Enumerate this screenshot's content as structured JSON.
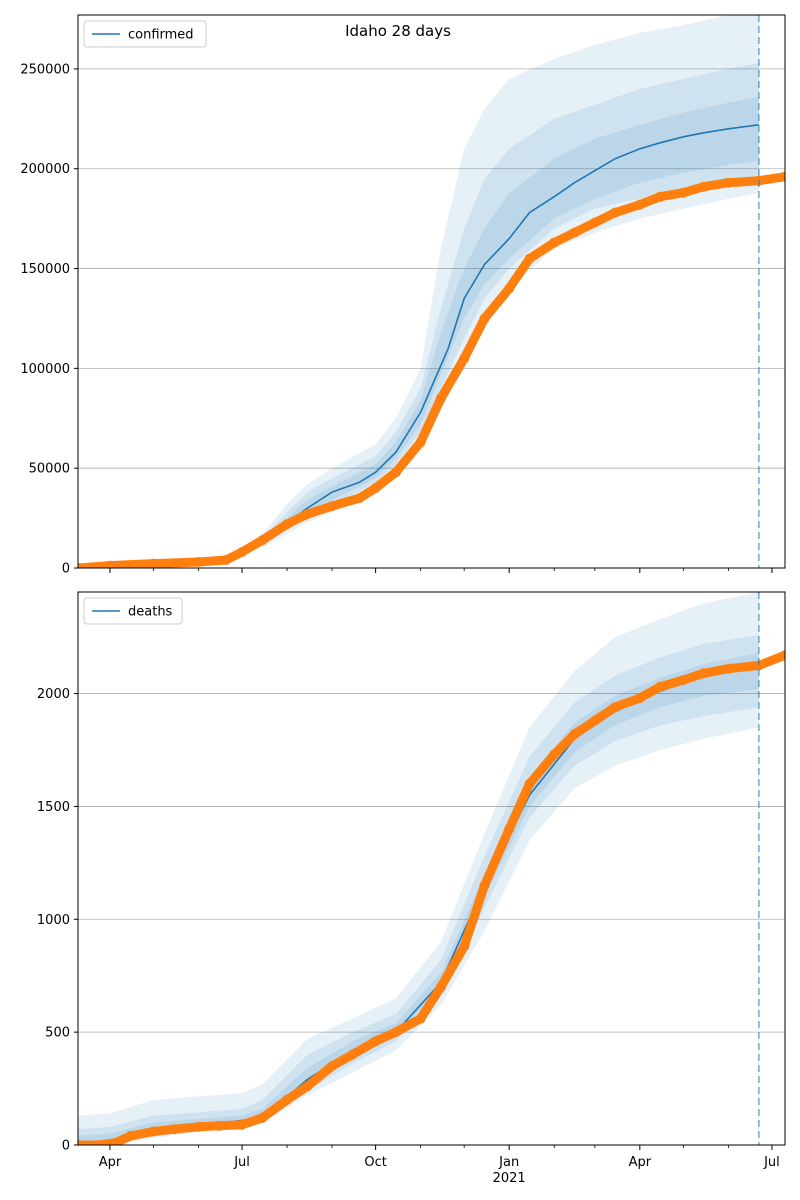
{
  "title": "Idaho 28 days",
  "chart_data": [
    {
      "type": "line",
      "title": "Idaho 28 days",
      "legend": "top-left",
      "grid": "y",
      "legend_label": "confirmed",
      "ylim": [
        0,
        277000
      ],
      "xlim": [
        "2020-03-10",
        "2021-07-10"
      ],
      "yticks": [
        0,
        50000,
        100000,
        150000,
        200000,
        250000
      ],
      "ytick_labels": [
        "0",
        "50000",
        "100000",
        "150000",
        "200000",
        "250000"
      ],
      "forecast_date": "2021-06-22",
      "colors": {
        "forecast": "#1f77b4",
        "observed": "#ff7f0e",
        "band": "#1f77b4"
      },
      "series": [
        {
          "name": "confirmed",
          "role": "forecast",
          "points": [
            [
              "2020-07-25",
              18500
            ],
            [
              "2020-08-15",
              30000
            ],
            [
              "2020-09-01",
              38000
            ],
            [
              "2020-09-20",
              43000
            ],
            [
              "2020-10-01",
              48000
            ],
            [
              "2020-10-15",
              58000
            ],
            [
              "2020-11-01",
              78000
            ],
            [
              "2020-11-20",
              110000
            ],
            [
              "2020-12-01",
              135000
            ],
            [
              "2020-12-15",
              152000
            ],
            [
              "2021-01-01",
              165000
            ],
            [
              "2021-01-15",
              178000
            ],
            [
              "2021-02-01",
              186000
            ],
            [
              "2021-02-15",
              193000
            ],
            [
              "2021-03-01",
              199000
            ],
            [
              "2021-03-15",
              205000
            ],
            [
              "2021-04-01",
              210000
            ],
            [
              "2021-04-15",
              213000
            ],
            [
              "2021-05-01",
              216000
            ],
            [
              "2021-05-15",
              218000
            ],
            [
              "2021-06-01",
              220000
            ],
            [
              "2021-06-22",
              222000
            ]
          ],
          "bands": [
            {
              "dates": [
                "2020-07-15",
                "2020-08-01",
                "2020-08-15",
                "2020-09-01",
                "2020-10-01",
                "2020-10-15",
                "2020-11-01",
                "2020-11-15",
                "2020-12-01",
                "2020-12-15",
                "2021-01-01",
                "2021-02-01",
                "2021-03-01",
                "2021-04-01",
                "2021-05-01",
                "2021-06-01",
                "2021-06-22"
              ],
              "lower": [
                10000,
                17000,
                23000,
                28000,
                40000,
                48000,
                62000,
                80000,
                100000,
                125000,
                140000,
                160000,
                168000,
                175000,
                180000,
                185000,
                188000
              ],
              "upper": [
                17000,
                32000,
                42000,
                50000,
                62000,
                75000,
                100000,
                160000,
                210000,
                230000,
                245000,
                255000,
                262000,
                268000,
                272000,
                277000,
                277000
              ]
            },
            {
              "dates": [
                "2020-07-15",
                "2020-08-01",
                "2020-08-15",
                "2020-09-01",
                "2020-10-01",
                "2020-10-15",
                "2020-11-01",
                "2020-11-15",
                "2020-12-01",
                "2020-12-15",
                "2021-01-01",
                "2021-02-01",
                "2021-03-01",
                "2021-04-01",
                "2021-05-01",
                "2021-06-01",
                "2021-06-22"
              ],
              "lower": [
                11000,
                19000,
                26000,
                31000,
                43000,
                52000,
                68000,
                90000,
                115000,
                135000,
                150000,
                170000,
                180000,
                185000,
                190000,
                193000,
                195000
              ],
              "upper": [
                15000,
                28000,
                38000,
                45000,
                56000,
                68000,
                90000,
                130000,
                170000,
                195000,
                210000,
                225000,
                232000,
                240000,
                245000,
                250000,
                253000
              ]
            },
            {
              "dates": [
                "2020-07-15",
                "2020-08-01",
                "2020-08-15",
                "2020-09-01",
                "2020-10-01",
                "2020-10-15",
                "2020-11-01",
                "2020-11-15",
                "2020-12-01",
                "2020-12-15",
                "2021-01-01",
                "2021-02-01",
                "2021-03-01",
                "2021-04-01",
                "2021-05-01",
                "2021-06-01",
                "2021-06-22"
              ],
              "lower": [
                12000,
                21000,
                28000,
                34000,
                45000,
                55000,
                72000,
                97000,
                125000,
                142000,
                155000,
                175000,
                185000,
                193000,
                198000,
                202000,
                204000
              ],
              "upper": [
                14000,
                25000,
                34000,
                41000,
                52000,
                63000,
                84000,
                118000,
                150000,
                170000,
                188000,
                205000,
                215000,
                222000,
                228000,
                233000,
                236000
              ]
            }
          ]
        },
        {
          "name": "observed",
          "role": "observed",
          "points": [
            [
              "2020-03-10",
              0
            ],
            [
              "2020-04-01",
              1200
            ],
            [
              "2020-05-01",
              2200
            ],
            [
              "2020-06-01",
              3000
            ],
            [
              "2020-06-20",
              4000
            ],
            [
              "2020-07-01",
              8000
            ],
            [
              "2020-07-15",
              14000
            ],
            [
              "2020-08-01",
              22000
            ],
            [
              "2020-08-15",
              27000
            ],
            [
              "2020-09-01",
              31000
            ],
            [
              "2020-09-20",
              35000
            ],
            [
              "2020-10-01",
              40000
            ],
            [
              "2020-10-15",
              48000
            ],
            [
              "2020-11-01",
              63000
            ],
            [
              "2020-11-15",
              85000
            ],
            [
              "2020-12-01",
              105000
            ],
            [
              "2020-12-15",
              125000
            ],
            [
              "2021-01-01",
              140000
            ],
            [
              "2021-01-15",
              155000
            ],
            [
              "2021-02-01",
              163000
            ],
            [
              "2021-02-15",
              168000
            ],
            [
              "2021-03-01",
              173000
            ],
            [
              "2021-03-15",
              178000
            ],
            [
              "2021-04-01",
              182000
            ],
            [
              "2021-04-15",
              186000
            ],
            [
              "2021-05-01",
              188000
            ],
            [
              "2021-05-15",
              191000
            ],
            [
              "2021-06-01",
              193000
            ],
            [
              "2021-06-22",
              194000
            ],
            [
              "2021-07-10",
              196000
            ]
          ]
        }
      ]
    },
    {
      "type": "line",
      "legend": "top-left",
      "grid": "y",
      "legend_label": "deaths",
      "ylim": [
        0,
        2450
      ],
      "xlim": [
        "2020-03-10",
        "2021-07-10"
      ],
      "yticks": [
        0,
        500,
        1000,
        1500,
        2000
      ],
      "ytick_labels": [
        "0",
        "500",
        "1000",
        "1500",
        "2000"
      ],
      "xticks": [
        "2020-04-01",
        "2020-07-01",
        "2020-10-01",
        "2021-01-01",
        "2021-04-01",
        "2021-07-01"
      ],
      "xtick_labels": [
        "Apr",
        "Jul",
        "Oct",
        "Jan",
        "Apr",
        "Jul"
      ],
      "xtick_year_label": "2021",
      "minor_xticks": [
        "2020-05-01",
        "2020-06-01",
        "2020-08-01",
        "2020-09-01",
        "2020-11-01",
        "2020-12-01",
        "2021-02-01",
        "2021-03-01",
        "2021-05-01",
        "2021-06-01"
      ],
      "forecast_date": "2021-06-22",
      "colors": {
        "forecast": "#1f77b4",
        "observed": "#ff7f0e",
        "band": "#1f77b4"
      },
      "series": [
        {
          "name": "deaths",
          "role": "forecast",
          "points": [
            [
              "2020-04-15",
              30
            ],
            [
              "2020-06-01",
              85
            ],
            [
              "2020-07-15",
              120
            ],
            [
              "2020-08-15",
              290
            ],
            [
              "2020-09-15",
              420
            ],
            [
              "2020-10-15",
              500
            ],
            [
              "2020-11-15",
              720
            ],
            [
              "2020-12-15",
              1150
            ],
            [
              "2021-01-15",
              1550
            ],
            [
              "2021-02-15",
              1800
            ],
            [
              "2021-03-15",
              1920
            ],
            [
              "2021-04-15",
              2010
            ],
            [
              "2021-05-15",
              2080
            ],
            [
              "2021-06-22",
              2120
            ]
          ],
          "bands": [
            {
              "dates": [
                "2020-03-10",
                "2020-04-01",
                "2020-05-01",
                "2020-06-01",
                "2020-07-01",
                "2020-07-15",
                "2020-08-15",
                "2020-09-15",
                "2020-10-15",
                "2020-11-15",
                "2020-12-15",
                "2021-01-15",
                "2021-02-15",
                "2021-03-15",
                "2021-04-15",
                "2021-05-15",
                "2021-06-22"
              ],
              "lower": [
                0,
                0,
                30,
                60,
                80,
                100,
                220,
                320,
                420,
                620,
                950,
                1350,
                1580,
                1680,
                1750,
                1800,
                1850
              ],
              "upper": [
                130,
                140,
                200,
                215,
                230,
                270,
                470,
                560,
                650,
                900,
                1380,
                1850,
                2100,
                2250,
                2330,
                2400,
                2450
              ]
            },
            {
              "dates": [
                "2020-03-10",
                "2020-04-01",
                "2020-05-01",
                "2020-06-01",
                "2020-07-01",
                "2020-07-15",
                "2020-08-15",
                "2020-09-15",
                "2020-10-15",
                "2020-11-15",
                "2020-12-15",
                "2021-01-15",
                "2021-02-15",
                "2021-03-15",
                "2021-04-15",
                "2021-05-15",
                "2021-06-22"
              ],
              "lower": [
                0,
                10,
                45,
                70,
                90,
                110,
                240,
                360,
                460,
                670,
                1050,
                1450,
                1680,
                1790,
                1860,
                1900,
                1940
              ],
              "upper": [
                70,
                80,
                130,
                145,
                160,
                200,
                400,
                500,
                580,
                820,
                1280,
                1720,
                1960,
                2080,
                2160,
                2220,
                2260
              ]
            },
            {
              "dates": [
                "2020-03-10",
                "2020-04-01",
                "2020-05-01",
                "2020-06-01",
                "2020-07-01",
                "2020-07-15",
                "2020-08-15",
                "2020-09-15",
                "2020-10-15",
                "2020-11-15",
                "2020-12-15",
                "2021-01-15",
                "2021-02-15",
                "2021-03-15",
                "2021-04-15",
                "2021-05-15",
                "2021-06-22"
              ],
              "lower": [
                0,
                20,
                55,
                80,
                100,
                115,
                260,
                390,
                480,
                700,
                1100,
                1500,
                1740,
                1860,
                1940,
                1990,
                2020
              ],
              "upper": [
                40,
                50,
                100,
                115,
                130,
                160,
                340,
                460,
                540,
                760,
                1200,
                1630,
                1870,
                1990,
                2070,
                2130,
                2180
              ]
            }
          ]
        },
        {
          "name": "observed",
          "role": "observed",
          "points": [
            [
              "2020-03-10",
              0
            ],
            [
              "2020-03-25",
              0
            ],
            [
              "2020-04-05",
              10
            ],
            [
              "2020-04-15",
              40
            ],
            [
              "2020-05-01",
              60
            ],
            [
              "2020-05-15",
              70
            ],
            [
              "2020-06-01",
              80
            ],
            [
              "2020-06-15",
              85
            ],
            [
              "2020-07-01",
              90
            ],
            [
              "2020-07-15",
              120
            ],
            [
              "2020-08-01",
              200
            ],
            [
              "2020-08-15",
              260
            ],
            [
              "2020-09-01",
              350
            ],
            [
              "2020-09-15",
              400
            ],
            [
              "2020-10-01",
              460
            ],
            [
              "2020-10-15",
              500
            ],
            [
              "2020-11-01",
              560
            ],
            [
              "2020-11-15",
              700
            ],
            [
              "2020-12-01",
              880
            ],
            [
              "2020-12-15",
              1150
            ],
            [
              "2021-01-01",
              1400
            ],
            [
              "2021-01-15",
              1600
            ],
            [
              "2021-02-01",
              1730
            ],
            [
              "2021-02-15",
              1820
            ],
            [
              "2021-03-01",
              1880
            ],
            [
              "2021-03-15",
              1940
            ],
            [
              "2021-04-01",
              1980
            ],
            [
              "2021-04-15",
              2030
            ],
            [
              "2021-05-01",
              2060
            ],
            [
              "2021-05-15",
              2090
            ],
            [
              "2021-06-01",
              2110
            ],
            [
              "2021-06-22",
              2125
            ],
            [
              "2021-07-10",
              2170
            ]
          ]
        }
      ]
    }
  ]
}
